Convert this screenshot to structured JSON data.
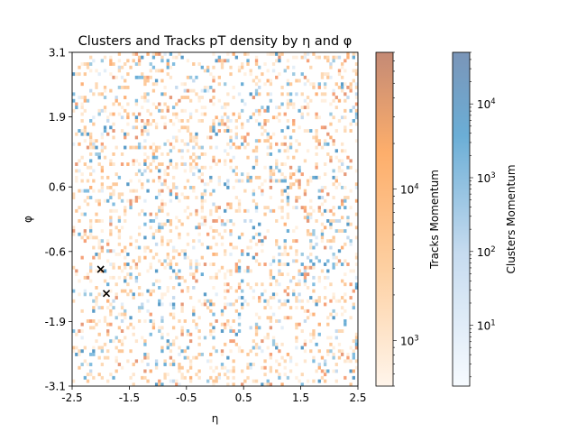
{
  "chart_data": {
    "type": "heatmap",
    "title": "Clusters and Tracks pT density by η and φ",
    "xlabel": "η",
    "ylabel": "φ",
    "xlim": [
      -2.5,
      2.5
    ],
    "ylim": [
      -3.1,
      3.1
    ],
    "xticks": [
      "-2.5",
      "-1.5",
      "-0.5",
      "0.5",
      "1.5",
      "2.5"
    ],
    "yticks": [
      "-3.1",
      "-1.9",
      "-0.6",
      "0.6",
      "1.9",
      "3.1"
    ],
    "grid": false,
    "series": [
      {
        "name": "Tracks Momentum",
        "colormap": "Oranges",
        "scale": "log",
        "range": [
          500,
          80000
        ],
        "colorbar_ticks": [
          "10^3",
          "10^4"
        ]
      },
      {
        "name": "Clusters Momentum",
        "colormap": "Blues",
        "scale": "log",
        "range": [
          1.5,
          50000
        ],
        "colorbar_ticks": [
          "10^1",
          "10^2",
          "10^3",
          "10^4"
        ]
      }
    ],
    "markers": [
      {
        "symbol": "x",
        "x": -2.0,
        "y": -0.93
      },
      {
        "symbol": "x",
        "x": -1.9,
        "y": -1.38
      }
    ],
    "colors": {
      "tracks_low": "#fff5eb",
      "tracks_mid": "#fdae6b",
      "tracks_high": "#a0522d",
      "clusters_low": "#f7fbff",
      "clusters_mid": "#6baed6",
      "clusters_high": "#08519c"
    }
  }
}
